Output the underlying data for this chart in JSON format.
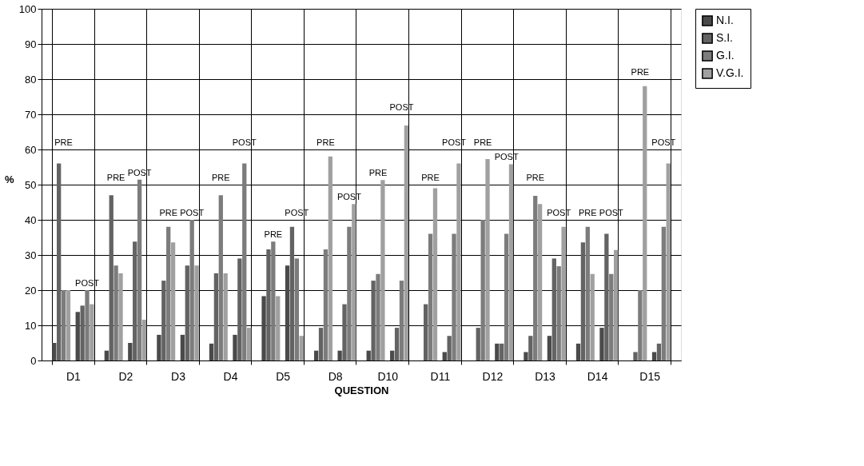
{
  "chart_data": {
    "type": "bar",
    "xlabel": "QUESTION",
    "ylabel": "%",
    "categories": [
      "D1",
      "D2",
      "D3",
      "D4",
      "D5",
      "D8",
      "D10",
      "D11",
      "D12",
      "D13",
      "D14",
      "D15"
    ],
    "series": [
      {
        "name": "N.I.",
        "color": "#4a4a4a",
        "values": [
          5,
          2.8,
          7.3,
          4.8,
          18.3,
          2.8,
          2.8,
          0,
          0,
          2.4,
          4.8,
          0
        ]
      },
      {
        "name": "S.I.",
        "color": "#636363",
        "values": [
          56,
          47,
          22.7,
          24.8,
          31.6,
          9.3,
          22.7,
          16,
          9.3,
          7,
          33.6,
          2.4
        ]
      },
      {
        "name": "G.I.",
        "color": "#7c7c7c",
        "values": [
          20,
          27,
          38,
          47,
          33.8,
          31.6,
          24.6,
          36,
          40,
          46.8,
          38,
          20
        ]
      },
      {
        "name": "V.G.I.",
        "color": "#a0a0a0",
        "values": [
          20,
          24.8,
          33.6,
          24.8,
          18.3,
          58,
          51.3,
          49,
          57.3,
          44.5,
          24.6,
          78
        ]
      },
      {
        "color": "#4a4a4a",
        "values": [
          13.8,
          5,
          7.3,
          7.3,
          27,
          2.8,
          2.8,
          2.4,
          4.8,
          7,
          9.3,
          2.4
        ]
      },
      {
        "color": "#636363",
        "values": [
          15.6,
          33.8,
          27,
          29,
          38,
          16,
          9.3,
          7,
          4.8,
          29,
          36,
          4.8
        ]
      },
      {
        "color": "#7c7c7c",
        "values": [
          20,
          51.4,
          40,
          56,
          29,
          38,
          22.7,
          36,
          36,
          26.8,
          24.6,
          38
        ]
      },
      {
        "color": "#a0a0a0",
        "values": [
          16,
          11.6,
          27,
          9.3,
          7,
          44.5,
          66.8,
          56,
          55.8,
          38,
          31.4,
          56
        ]
      }
    ],
    "ylim": [
      0,
      100
    ],
    "yticks": [
      0,
      10,
      20,
      30,
      40,
      50,
      60,
      70,
      80,
      90,
      100
    ],
    "grid": true,
    "legend": "right",
    "annotations": [
      "PRE",
      "POST",
      "PRE",
      "POST",
      "PRE",
      "POST",
      "PRE",
      "POST",
      "PRE",
      "POST",
      "PRE",
      "POST",
      "PRE",
      "POST",
      "PRE",
      "POST",
      "PRE",
      "POST",
      "PRE",
      "POST",
      "PRE",
      "POST",
      "PRE",
      "POST"
    ]
  }
}
